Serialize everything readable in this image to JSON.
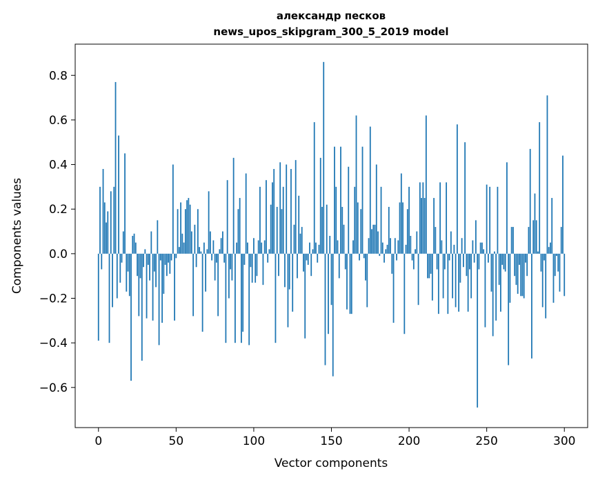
{
  "chart_data": {
    "type": "bar",
    "title": [
      "александр песков",
      "news_upos_skipgram_300_5_2019 model"
    ],
    "xlabel": "Vector components",
    "ylabel": "Components values",
    "xlim": [
      -15,
      315
    ],
    "ylim": [
      -0.78,
      0.94
    ],
    "xticks": [
      0,
      50,
      100,
      150,
      200,
      250,
      300
    ],
    "xtick_labels": [
      "0",
      "50",
      "100",
      "150",
      "200",
      "250",
      "300"
    ],
    "yticks": [
      -0.6,
      -0.4,
      -0.2,
      0.0,
      0.2,
      0.4,
      0.6,
      0.8
    ],
    "ytick_labels": [
      "−0.6",
      "−0.4",
      "−0.2",
      "0.0",
      "0.2",
      "0.4",
      "0.6",
      "0.8"
    ],
    "bar_color": "#1f77b4",
    "values": [
      -0.39,
      0.3,
      -0.07,
      0.38,
      0.23,
      0.14,
      0.19,
      -0.4,
      0.28,
      -0.24,
      0.3,
      0.77,
      -0.2,
      0.53,
      -0.13,
      -0.04,
      0.1,
      0.45,
      -0.17,
      -0.08,
      -0.19,
      -0.57,
      0.08,
      0.09,
      0.05,
      -0.1,
      -0.28,
      -0.11,
      -0.48,
      -0.06,
      0.02,
      -0.29,
      -0.05,
      -0.12,
      0.1,
      -0.3,
      -0.08,
      -0.15,
      0.15,
      -0.41,
      -0.03,
      -0.31,
      -0.18,
      -0.05,
      -0.1,
      -0.04,
      -0.09,
      -0.03,
      0.4,
      -0.3,
      -0.02,
      0.2,
      0.03,
      0.23,
      0.09,
      0.05,
      0.2,
      0.24,
      0.25,
      0.22,
      0.1,
      -0.28,
      0.13,
      -0.06,
      0.2,
      0.03,
      0.01,
      -0.35,
      0.05,
      -0.17,
      0.02,
      0.28,
      0.1,
      -0.03,
      0.06,
      -0.12,
      -0.04,
      -0.28,
      0.02,
      0.07,
      0.1,
      -0.04,
      -0.4,
      0.33,
      -0.2,
      -0.07,
      -0.12,
      0.43,
      -0.4,
      0.05,
      0.2,
      0.25,
      -0.4,
      -0.35,
      -0.05,
      0.36,
      0.05,
      -0.41,
      -0.06,
      -0.13,
      0.07,
      -0.13,
      -0.1,
      0.06,
      0.3,
      0.05,
      -0.14,
      0.06,
      0.33,
      -0.04,
      0.02,
      0.22,
      0.32,
      0.38,
      -0.4,
      0.21,
      -0.1,
      0.41,
      0.2,
      0.3,
      -0.15,
      0.4,
      -0.33,
      -0.16,
      0.38,
      -0.26,
      0.13,
      0.42,
      -0.11,
      0.26,
      0.09,
      0.12,
      -0.08,
      -0.38,
      -0.03,
      -0.05,
      0.05,
      -0.1,
      0.02,
      0.59,
      0.05,
      -0.04,
      0.04,
      0.43,
      0.21,
      0.86,
      -0.5,
      0.22,
      -0.36,
      0.08,
      -0.23,
      -0.55,
      0.48,
      0.3,
      0.06,
      -0.11,
      0.48,
      0.21,
      0.13,
      -0.07,
      -0.25,
      0.39,
      -0.27,
      -0.27,
      0.06,
      0.3,
      0.62,
      0.23,
      -0.03,
      0.2,
      0.48,
      -0.02,
      -0.12,
      -0.24,
      0.07,
      0.57,
      0.11,
      0.13,
      0.13,
      0.4,
      0.1,
      -0.01,
      0.3,
      0.05,
      -0.04,
      0.02,
      0.04,
      0.21,
      0.07,
      -0.09,
      -0.31,
      0.07,
      -0.03,
      0.06,
      0.23,
      0.36,
      0.23,
      -0.36,
      0.04,
      0.2,
      0.3,
      0.08,
      -0.03,
      -0.07,
      0.02,
      0.1,
      -0.23,
      0.32,
      0.25,
      0.32,
      0.25,
      0.62,
      -0.11,
      -0.11,
      -0.09,
      -0.21,
      0.25,
      0.12,
      -0.07,
      -0.27,
      0.32,
      0.06,
      -0.2,
      -0.07,
      0.32,
      -0.27,
      -0.03,
      0.1,
      -0.2,
      0.04,
      -0.24,
      0.58,
      -0.26,
      -0.13,
      0.07,
      -0.06,
      0.5,
      -0.1,
      -0.26,
      -0.07,
      -0.2,
      0.06,
      -0.04,
      0.15,
      -0.69,
      -0.07,
      0.05,
      0.05,
      0.02,
      -0.33,
      0.31,
      -0.04,
      0.3,
      -0.17,
      -0.37,
      0.01,
      -0.3,
      0.3,
      -0.14,
      -0.26,
      -0.05,
      -0.07,
      -0.08,
      0.41,
      -0.5,
      -0.22,
      0.12,
      0.12,
      -0.1,
      -0.14,
      -0.18,
      -0.05,
      -0.19,
      -0.19,
      -0.2,
      -0.04,
      -0.1,
      0.12,
      0.47,
      -0.47,
      0.15,
      0.27,
      0.15,
      0.01,
      0.59,
      -0.08,
      -0.24,
      -0.03,
      -0.29,
      0.71,
      0.03,
      0.05,
      0.25,
      -0.22,
      -0.1,
      -0.01,
      -0.08,
      -0.17,
      0.12,
      0.44,
      -0.19
    ]
  }
}
